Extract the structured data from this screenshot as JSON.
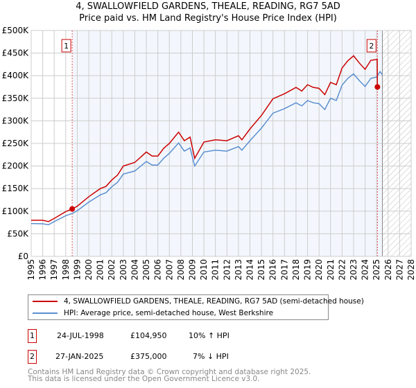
{
  "title_line1": "4, SWALLOWFIELD GARDENS, THEALE, READING, RG7 5AD",
  "title_line2": "Price paid vs. HM Land Registry's House Price Index (HPI)",
  "chart_data": {
    "type": "line",
    "title": "4, SWALLOWFIELD GARDENS, THEALE, READING, RG7 5AD — Price paid vs. HM Land Registry's House Price Index (HPI)",
    "xlim": [
      1995,
      2028
    ],
    "ylim": [
      0,
      500000
    ],
    "x_ticks": [
      "1995",
      "1996",
      "1997",
      "1998",
      "1999",
      "2000",
      "2001",
      "2002",
      "2003",
      "2004",
      "2005",
      "2006",
      "2007",
      "2008",
      "2009",
      "2010",
      "2011",
      "2012",
      "2013",
      "2014",
      "2015",
      "2016",
      "2017",
      "2018",
      "2019",
      "2020",
      "2021",
      "2022",
      "2023",
      "2024",
      "2025",
      "2026",
      "2027",
      "2028"
    ],
    "y_ticks": [
      {
        "v": 0,
        "label": "£0"
      },
      {
        "v": 50000,
        "label": "£50K"
      },
      {
        "v": 100000,
        "label": "£100K"
      },
      {
        "v": 150000,
        "label": "£150K"
      },
      {
        "v": 200000,
        "label": "£200K"
      },
      {
        "v": 250000,
        "label": "£250K"
      },
      {
        "v": 300000,
        "label": "£300K"
      },
      {
        "v": 350000,
        "label": "£350K"
      },
      {
        "v": 400000,
        "label": "£400K"
      },
      {
        "v": 450000,
        "label": "£450K"
      },
      {
        "v": 500000,
        "label": "£500K"
      }
    ],
    "grid": true,
    "shaded_range": [
      1998.56,
      2025.5
    ],
    "forecast_hatch_from": 2025.5,
    "series": [
      {
        "name": "4, SWALLOWFIELD GARDENS, THEALE, READING, RG7 5AD (semi-detached house)",
        "color": "#cc0000",
        "x": [
          1995,
          1996,
          1996.5,
          1997,
          1998,
          1998.56,
          1999,
          2000,
          2001,
          2001.5,
          2002,
          2002.5,
          2003,
          2004,
          2005,
          2005.5,
          2006,
          2006.5,
          2007,
          2007.8,
          2008.3,
          2008.8,
          2009.2,
          2010,
          2011,
          2012,
          2013,
          2013.3,
          2014,
          2015,
          2016,
          2017,
          2018,
          2018.5,
          2019,
          2019.5,
          2020,
          2020.5,
          2021,
          2021.5,
          2022,
          2022.5,
          2023,
          2023.5,
          2024,
          2024.5,
          2025.05,
          2025.07,
          2025.3
        ],
        "y": [
          80000,
          80000,
          77000,
          84000,
          99000,
          104950,
          111000,
          132000,
          150000,
          155000,
          169000,
          180000,
          200000,
          208000,
          231000,
          222000,
          222000,
          239000,
          250000,
          275000,
          256000,
          264000,
          217000,
          253000,
          258000,
          256000,
          267000,
          258000,
          282000,
          312000,
          349000,
          360000,
          374000,
          366000,
          380000,
          374000,
          372000,
          358000,
          385000,
          380000,
          417000,
          433000,
          444000,
          428000,
          414000,
          434000,
          436000,
          375000,
          375000
        ]
      },
      {
        "name": "HPI: Average price, semi-detached house, West Berkshire",
        "color": "#5b8fd0",
        "x": [
          1995,
          1996,
          1996.5,
          1997,
          1998,
          1998.56,
          1999,
          2000,
          2001,
          2001.5,
          2002,
          2002.5,
          2003,
          2004,
          2005,
          2005.5,
          2006,
          2006.5,
          2007,
          2007.8,
          2008.3,
          2008.8,
          2009.2,
          2010,
          2011,
          2012,
          2013,
          2013.3,
          2014,
          2015,
          2016,
          2017,
          2018,
          2018.5,
          2019,
          2019.5,
          2020,
          2020.5,
          2021,
          2021.5,
          2022,
          2022.5,
          2023,
          2023.5,
          2024,
          2024.5,
          2025,
          2025.3,
          2025.5
        ],
        "y": [
          72700,
          72000,
          70000,
          77000,
          90000,
          95000,
          101000,
          120000,
          136000,
          141000,
          154000,
          164000,
          182000,
          189000,
          210000,
          202000,
          202000,
          217000,
          228000,
          251000,
          233000,
          240000,
          200000,
          231000,
          235000,
          233000,
          243000,
          235000,
          256000,
          284000,
          317000,
          327000,
          340000,
          333000,
          345000,
          340000,
          338000,
          325000,
          350000,
          345000,
          379000,
          394000,
          404000,
          389000,
          376000,
          394000,
          397000,
          409000,
          402000
        ]
      }
    ],
    "annotations": [
      {
        "label": "1",
        "x": 1998.56,
        "y": 104950
      },
      {
        "label": "2",
        "x": 2025.07,
        "y": 375000
      }
    ]
  },
  "legend": {
    "items": [
      {
        "label": "4, SWALLOWFIELD GARDENS, THEALE, READING, RG7 5AD (semi-detached house)",
        "color": "#cc0000"
      },
      {
        "label": "HPI: Average price, semi-detached house, West Berkshire",
        "color": "#5b8fd0"
      }
    ]
  },
  "sales": [
    {
      "num": "1",
      "date": "24-JUL-1998",
      "price": "£104,950",
      "hpi": "10% ↑ HPI"
    },
    {
      "num": "2",
      "date": "27-JAN-2025",
      "price": "£375,000",
      "hpi": "7% ↓ HPI"
    }
  ],
  "footer": {
    "line1": "Contains HM Land Registry data © Crown copyright and database right 2025.",
    "line2": "This data is licensed under the Open Government Licence v3.0."
  }
}
